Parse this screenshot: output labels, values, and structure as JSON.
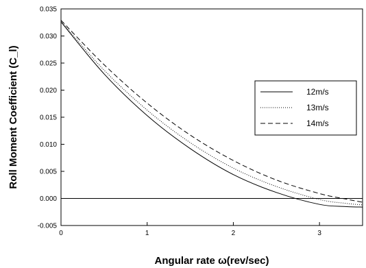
{
  "chart_data": {
    "type": "line",
    "title": "",
    "xlabel": "Angular rate ω(rev/sec)",
    "ylabel": "Roll Moment Coefficient (C_l)",
    "xlim": [
      0,
      3.5
    ],
    "ylim": [
      -0.005,
      0.035
    ],
    "xticks": [
      0,
      1,
      2,
      3
    ],
    "xtick_labels": [
      "0",
      "1",
      "2",
      "3"
    ],
    "yticks": [
      -0.005,
      0.0,
      0.005,
      0.01,
      0.015,
      0.02,
      0.025,
      0.03,
      0.035
    ],
    "ytick_labels": [
      "-0.005",
      "0.000",
      "0.005",
      "0.010",
      "0.015",
      "0.020",
      "0.025",
      "0.030",
      "0.035"
    ],
    "grid": false,
    "reference_line_y": 0,
    "legend_position": "right",
    "series": [
      {
        "name": "12m/s",
        "style": "solid",
        "color": "#000000",
        "x": [
          0,
          0.5,
          1.0,
          1.5,
          2.0,
          2.5,
          3.0,
          3.3,
          3.5
        ],
        "y": [
          0.0326,
          0.023,
          0.0153,
          0.0092,
          0.0044,
          0.0011,
          -0.0011,
          -0.0015,
          -0.0016
        ]
      },
      {
        "name": "13m/s",
        "style": "dotted",
        "color": "#000000",
        "x": [
          0,
          0.5,
          1.0,
          1.5,
          2.0,
          2.5,
          3.0,
          3.3,
          3.5
        ],
        "y": [
          0.0327,
          0.0237,
          0.0163,
          0.0103,
          0.0056,
          0.0022,
          -0.0002,
          -0.0009,
          -0.0012
        ]
      },
      {
        "name": "14m/s",
        "style": "dashed",
        "color": "#000000",
        "x": [
          0,
          0.5,
          1.0,
          1.5,
          2.0,
          2.5,
          3.0,
          3.3,
          3.5
        ],
        "y": [
          0.0329,
          0.0247,
          0.0176,
          0.0117,
          0.007,
          0.0034,
          0.0009,
          -0.0001,
          -0.0007
        ]
      }
    ]
  }
}
